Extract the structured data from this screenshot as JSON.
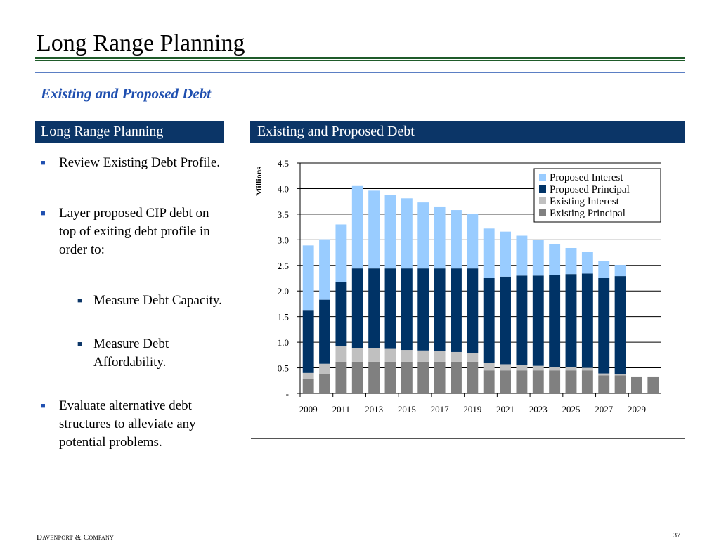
{
  "page": {
    "title": "Long Range Planning",
    "subtitle": "Existing and Proposed Debt",
    "left_header": "Long Range Planning",
    "right_header": "Existing and Proposed Debt",
    "footer_left": "Davenport & Company",
    "page_number": "37"
  },
  "bullets": [
    {
      "text": " Review Existing Debt Profile.",
      "level": 1
    },
    {
      "text": "Layer proposed CIP debt on top of exiting debt profile in order to:",
      "level": 1
    },
    {
      "text": "Measure Debt Capacity.",
      "level": 2
    },
    {
      "text": "Measure Debt Affordability.",
      "level": 2
    },
    {
      "text": "Evaluate alternative debt structures to alleviate any potential problems.",
      "level": 1
    }
  ],
  "colors": {
    "proposed_interest": "#99ccff",
    "proposed_principal": "#003366",
    "existing_interest": "#c0c0c0",
    "existing_principal": "#808080",
    "header_bg": "#0b3567"
  },
  "chart_data": {
    "type": "bar",
    "stacked": true,
    "ylabel": "Millions",
    "ylim": [
      0,
      4.5
    ],
    "y_ticks": [
      "-",
      "0.5",
      "1.0",
      "1.5",
      "2.0",
      "2.5",
      "3.0",
      "3.5",
      "4.0",
      "4.5"
    ],
    "y_tick_values": [
      0,
      0.5,
      1.0,
      1.5,
      2.0,
      2.5,
      3.0,
      3.5,
      4.0,
      4.5
    ],
    "grid": true,
    "legend_position": "top-right",
    "categories": [
      "2009",
      "2010",
      "2011",
      "2012",
      "2013",
      "2014",
      "2015",
      "2016",
      "2017",
      "2018",
      "2019",
      "2020",
      "2021",
      "2022",
      "2023",
      "2024",
      "2025",
      "2026",
      "2027",
      "2028",
      "2029",
      "2030"
    ],
    "x_tick_labels": [
      "2009",
      "2011",
      "2013",
      "2015",
      "2017",
      "2019",
      "2021",
      "2023",
      "2025",
      "2027",
      "2029"
    ],
    "series": [
      {
        "name": "Existing Principal",
        "color": "#808080",
        "values": [
          0.28,
          0.38,
          0.62,
          0.62,
          0.62,
          0.62,
          0.62,
          0.62,
          0.62,
          0.62,
          0.62,
          0.45,
          0.45,
          0.45,
          0.45,
          0.45,
          0.45,
          0.45,
          0.35,
          0.35,
          0.33,
          0.33
        ]
      },
      {
        "name": "Existing Interest",
        "color": "#c0c0c0",
        "values": [
          0.12,
          0.2,
          0.3,
          0.27,
          0.26,
          0.25,
          0.23,
          0.22,
          0.21,
          0.19,
          0.17,
          0.14,
          0.12,
          0.11,
          0.09,
          0.07,
          0.06,
          0.05,
          0.04,
          0.02,
          0,
          0
        ]
      },
      {
        "name": "Proposed Principal",
        "color": "#003366",
        "values": [
          1.23,
          1.25,
          1.25,
          1.55,
          1.56,
          1.57,
          1.59,
          1.6,
          1.61,
          1.63,
          1.65,
          1.67,
          1.71,
          1.74,
          1.76,
          1.79,
          1.82,
          1.84,
          1.87,
          1.92,
          0,
          0
        ]
      },
      {
        "name": "Proposed Interest",
        "color": "#99ccff",
        "values": [
          1.26,
          1.18,
          1.13,
          1.61,
          1.52,
          1.44,
          1.37,
          1.29,
          1.21,
          1.14,
          1.06,
          0.96,
          0.88,
          0.78,
          0.7,
          0.61,
          0.51,
          0.42,
          0.32,
          0.22,
          0,
          0
        ]
      }
    ]
  }
}
